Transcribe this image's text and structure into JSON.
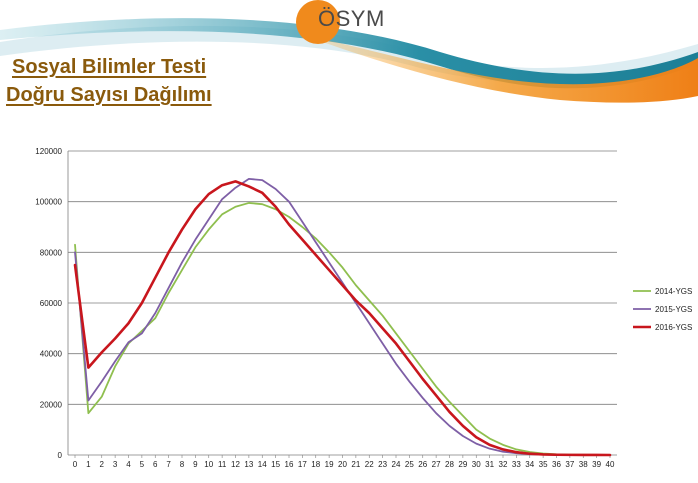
{
  "logo": {
    "text": "ÖSYM"
  },
  "title": {
    "line1": "Sosyal Bilimler Testi",
    "line2": "Doğru Sayısı Dağılımı"
  },
  "colors": {
    "brand_orange": "#f08a1c",
    "brand_teal": "#2a8fa6",
    "title_text": "#8a5a0c",
    "series_2014": "#8fbf4f",
    "series_2015": "#7e5fa6",
    "series_2016": "#c8161d"
  },
  "chart_data": {
    "type": "line",
    "x": [
      0,
      1,
      2,
      3,
      4,
      5,
      6,
      7,
      8,
      9,
      10,
      11,
      12,
      13,
      14,
      15,
      16,
      17,
      18,
      19,
      20,
      21,
      22,
      23,
      24,
      25,
      26,
      27,
      28,
      29,
      30,
      31,
      32,
      33,
      34,
      35,
      36,
      37,
      38,
      39,
      40
    ],
    "ylim": [
      0,
      120000
    ],
    "xlim": [
      0,
      40
    ],
    "yticks": [
      0,
      20000,
      40000,
      60000,
      80000,
      100000,
      120000
    ],
    "ytick_labels": [
      "0",
      "20000",
      "40000",
      "60000",
      "80000",
      "100000",
      "120000"
    ],
    "xtick_labels": [
      "0",
      "1",
      "2",
      "3",
      "4",
      "5",
      "6",
      "7",
      "8",
      "9",
      "10",
      "11",
      "12",
      "13",
      "14",
      "15",
      "16",
      "17",
      "18",
      "19",
      "20",
      "21",
      "22",
      "23",
      "24",
      "25",
      "26",
      "27",
      "28",
      "29",
      "30",
      "31",
      "32",
      "33",
      "34",
      "35",
      "36",
      "37",
      "38",
      "39",
      "40"
    ],
    "grid": "horizontal",
    "legend_position": "right",
    "series": [
      {
        "name": "2014-YGS",
        "color": "#8fbf4f",
        "values": [
          83000,
          16500,
          23000,
          35000,
          44000,
          49000,
          54000,
          64000,
          73000,
          82000,
          89000,
          95000,
          98000,
          99500,
          99000,
          97000,
          94000,
          90000,
          85500,
          80000,
          74000,
          67000,
          61000,
          55000,
          48000,
          41000,
          34000,
          27000,
          21000,
          15500,
          10000,
          6500,
          4000,
          2200,
          1200,
          600,
          300,
          150,
          80,
          40,
          20
        ]
      },
      {
        "name": "2015-YGS",
        "color": "#7e5fa6",
        "values": [
          80000,
          21500,
          29000,
          37000,
          44500,
          48000,
          56000,
          66000,
          76000,
          85000,
          93000,
          101000,
          105500,
          109000,
          108500,
          105000,
          100000,
          92000,
          84000,
          76000,
          68000,
          60000,
          52000,
          44000,
          36000,
          29000,
          22500,
          16500,
          11500,
          7500,
          4500,
          2500,
          1300,
          700,
          350,
          150,
          80,
          40,
          20,
          10,
          5
        ]
      },
      {
        "name": "2016-YGS",
        "color": "#c8161d",
        "values": [
          75000,
          34500,
          40500,
          46000,
          52000,
          60000,
          70000,
          80000,
          89000,
          97000,
          103000,
          106500,
          108000,
          106000,
          103500,
          98000,
          91000,
          85000,
          79000,
          73000,
          67000,
          61000,
          56000,
          50000,
          44000,
          37000,
          30000,
          23500,
          17000,
          11500,
          7000,
          4000,
          2200,
          1100,
          500,
          220,
          100,
          50,
          20,
          10,
          5
        ]
      }
    ]
  }
}
